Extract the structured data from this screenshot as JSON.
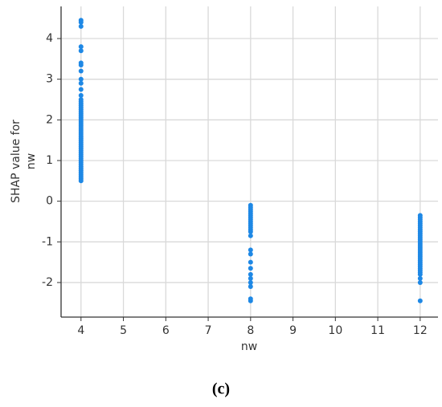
{
  "chart_data": {
    "type": "scatter",
    "xlabel": "nw",
    "ylabel": [
      "SHAP value for",
      "nw"
    ],
    "caption": "(c)",
    "color": "#1e88e5",
    "grid": true,
    "xlim": [
      3.53,
      12.42
    ],
    "ylim": [
      -2.85,
      4.79
    ],
    "xticks": [
      4,
      5,
      6,
      7,
      8,
      9,
      10,
      11,
      12
    ],
    "yticks": [
      -2,
      -1,
      0,
      1,
      2,
      3,
      4
    ],
    "x": [
      4,
      4,
      4,
      4,
      4,
      4,
      4,
      4,
      4,
      4,
      4,
      4,
      4,
      4,
      4,
      4,
      4,
      4,
      4,
      4,
      4,
      4,
      4,
      4,
      4,
      4,
      4,
      4,
      4,
      4,
      4,
      4,
      4,
      4,
      4,
      4,
      4,
      4,
      4,
      4,
      4,
      4,
      4,
      4,
      4,
      4,
      4,
      4,
      4,
      4,
      4,
      4,
      4,
      8,
      8,
      8,
      8,
      8,
      8,
      8,
      8,
      8,
      8,
      8,
      8,
      8,
      8,
      8,
      8,
      8,
      8,
      8,
      8,
      8,
      8,
      8,
      8,
      8,
      12,
      12,
      12,
      12,
      12,
      12,
      12,
      12,
      12,
      12,
      12,
      12,
      12,
      12,
      12,
      12,
      12,
      12,
      12,
      12,
      12,
      12,
      12,
      12,
      12,
      12,
      12,
      12,
      12,
      12,
      12,
      12,
      12
    ],
    "values": [
      4.45,
      4.4,
      4.3,
      3.8,
      3.7,
      3.4,
      3.35,
      3.2,
      3.0,
      2.9,
      2.75,
      2.6,
      2.5,
      2.45,
      2.4,
      2.35,
      2.3,
      2.25,
      2.2,
      2.15,
      2.1,
      2.05,
      2.0,
      1.95,
      1.9,
      1.85,
      1.8,
      1.75,
      1.7,
      1.65,
      1.6,
      1.55,
      1.5,
      1.45,
      1.4,
      1.35,
      1.3,
      1.25,
      1.2,
      1.15,
      1.1,
      1.05,
      1.0,
      0.95,
      0.9,
      0.85,
      0.8,
      0.75,
      0.7,
      0.65,
      0.6,
      0.55,
      0.5,
      -0.1,
      -0.15,
      -0.2,
      -0.25,
      -0.3,
      -0.35,
      -0.4,
      -0.45,
      -0.5,
      -0.55,
      -0.6,
      -0.65,
      -0.7,
      -0.75,
      -0.85,
      -1.2,
      -1.3,
      -1.5,
      -1.65,
      -1.8,
      -1.9,
      -2.0,
      -2.1,
      -2.4,
      -2.45,
      -0.35,
      -0.4,
      -0.45,
      -0.5,
      -0.55,
      -0.6,
      -0.65,
      -0.7,
      -0.75,
      -0.8,
      -0.85,
      -0.9,
      -0.95,
      -1.0,
      -1.05,
      -1.1,
      -1.15,
      -1.2,
      -1.25,
      -1.3,
      -1.35,
      -1.4,
      -1.45,
      -1.5,
      -1.55,
      -1.6,
      -1.65,
      -1.7,
      -1.75,
      -1.8,
      -1.9,
      -2.0,
      -2.45
    ]
  }
}
